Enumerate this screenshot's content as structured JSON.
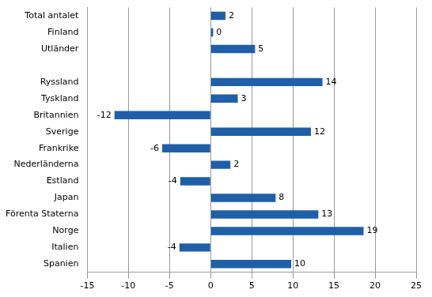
{
  "chart_data": {
    "type": "bar",
    "orientation": "horizontal",
    "categories": [
      "Total antalet",
      "Finland",
      "Utländer",
      null,
      "Ryssland",
      "Tyskland",
      "Britannien",
      "Sverige",
      "Frankrike",
      "Nederländerna",
      "Estland",
      "Japan",
      "Förenta Staterna",
      "Norge",
      "Italien",
      "Spanien"
    ],
    "values": [
      1.8,
      0.3,
      5.4,
      null,
      13.6,
      3.3,
      -11.7,
      12.2,
      -5.9,
      2.4,
      -3.7,
      7.9,
      13.1,
      18.6,
      -3.8,
      9.8
    ],
    "value_labels": [
      "2",
      "0",
      "5",
      null,
      "14",
      "3",
      "-12",
      "12",
      "-6",
      "2",
      "-4",
      "8",
      "13",
      "19",
      "-4",
      "10"
    ],
    "color": "#1f5fa8",
    "xlim": [
      -15,
      25
    ],
    "xticks": [
      -15,
      -10,
      -5,
      0,
      5,
      10,
      15,
      20,
      25
    ],
    "grid": true,
    "data_labels": true
  }
}
